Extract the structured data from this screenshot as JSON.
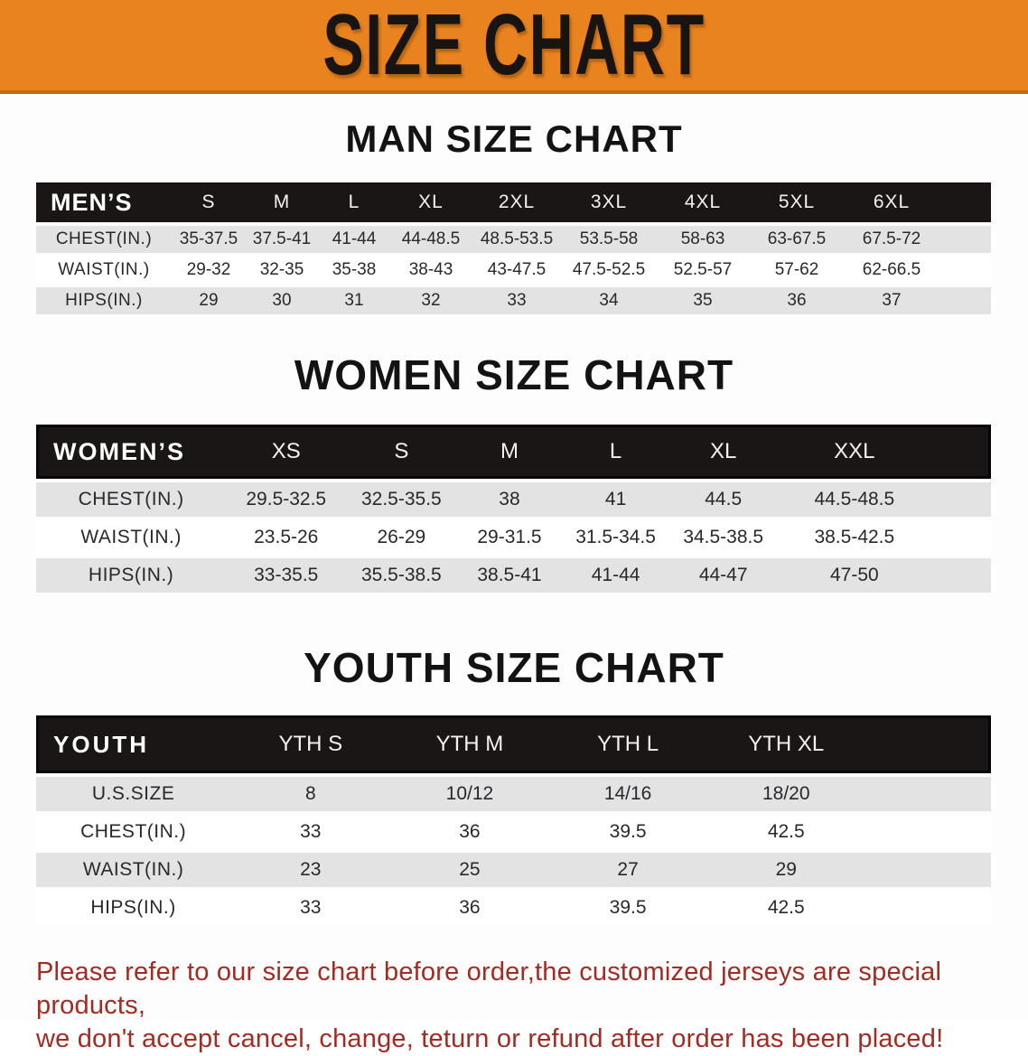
{
  "banner": {
    "title": "SIZE CHART"
  },
  "colors": {
    "banner_orange": "#e8831f",
    "banner_edge": "#c06a15",
    "header_black": "#191615",
    "row_gray": "#e3e3e3",
    "disclaimer_red": "#a32b22"
  },
  "sections": [
    {
      "key": "men",
      "title": "MAN SIZE CHART",
      "header_label": "MEN’S",
      "sizes": [
        "S",
        "M",
        "L",
        "XL",
        "2XL",
        "3XL",
        "4XL",
        "5XL",
        "6XL"
      ],
      "rows": [
        {
          "label": "CHEST(IN.)",
          "values": [
            "35-37.5",
            "37.5-41",
            "41-44",
            "44-48.5",
            "48.5-53.5",
            "53.5-58",
            "58-63",
            "63-67.5",
            "67.5-72"
          ]
        },
        {
          "label": "WAIST(IN.)",
          "values": [
            "29-32",
            "32-35",
            "35-38",
            "38-43",
            "43-47.5",
            "47.5-52.5",
            "52.5-57",
            "57-62",
            "62-66.5"
          ]
        },
        {
          "label": "HIPS(IN.)",
          "values": [
            "29",
            "30",
            "31",
            "32",
            "33",
            "34",
            "35",
            "36",
            "37"
          ]
        }
      ]
    },
    {
      "key": "women",
      "title": "WOMEN SIZE CHART",
      "header_label": "WOMEN’S",
      "sizes": [
        "XS",
        "S",
        "M",
        "L",
        "XL",
        "XXL"
      ],
      "rows": [
        {
          "label": "CHEST(IN.)",
          "values": [
            "29.5-32.5",
            "32.5-35.5",
            "38",
            "41",
            "44.5",
            "44.5-48.5"
          ]
        },
        {
          "label": "WAIST(IN.)",
          "values": [
            "23.5-26",
            "26-29",
            "29-31.5",
            "31.5-34.5",
            "34.5-38.5",
            "38.5-42.5"
          ]
        },
        {
          "label": "HIPS(IN.)",
          "values": [
            "33-35.5",
            "35.5-38.5",
            "38.5-41",
            "41-44",
            "44-47",
            "47-50"
          ]
        }
      ]
    },
    {
      "key": "youth",
      "title": "YOUTH SIZE CHART",
      "header_label": "YOUTH",
      "sizes": [
        "YTH S",
        "YTH M",
        "YTH L",
        "YTH XL"
      ],
      "rows": [
        {
          "label": "U.S.SIZE",
          "values": [
            "8",
            "10/12",
            "14/16",
            "18/20"
          ]
        },
        {
          "label": "CHEST(IN.)",
          "values": [
            "33",
            "36",
            "39.5",
            "42.5"
          ]
        },
        {
          "label": "WAIST(IN.)",
          "values": [
            "23",
            "25",
            "27",
            "29"
          ]
        },
        {
          "label": "HIPS(IN.)",
          "values": [
            "33",
            "36",
            "39.5",
            "42.5"
          ]
        }
      ]
    }
  ],
  "disclaimer": {
    "lines": [
      "Please refer to our size chart before order,the customized jerseys are special products,",
      "we don't accept cancel, change, teturn or refund after order has been placed!"
    ]
  }
}
